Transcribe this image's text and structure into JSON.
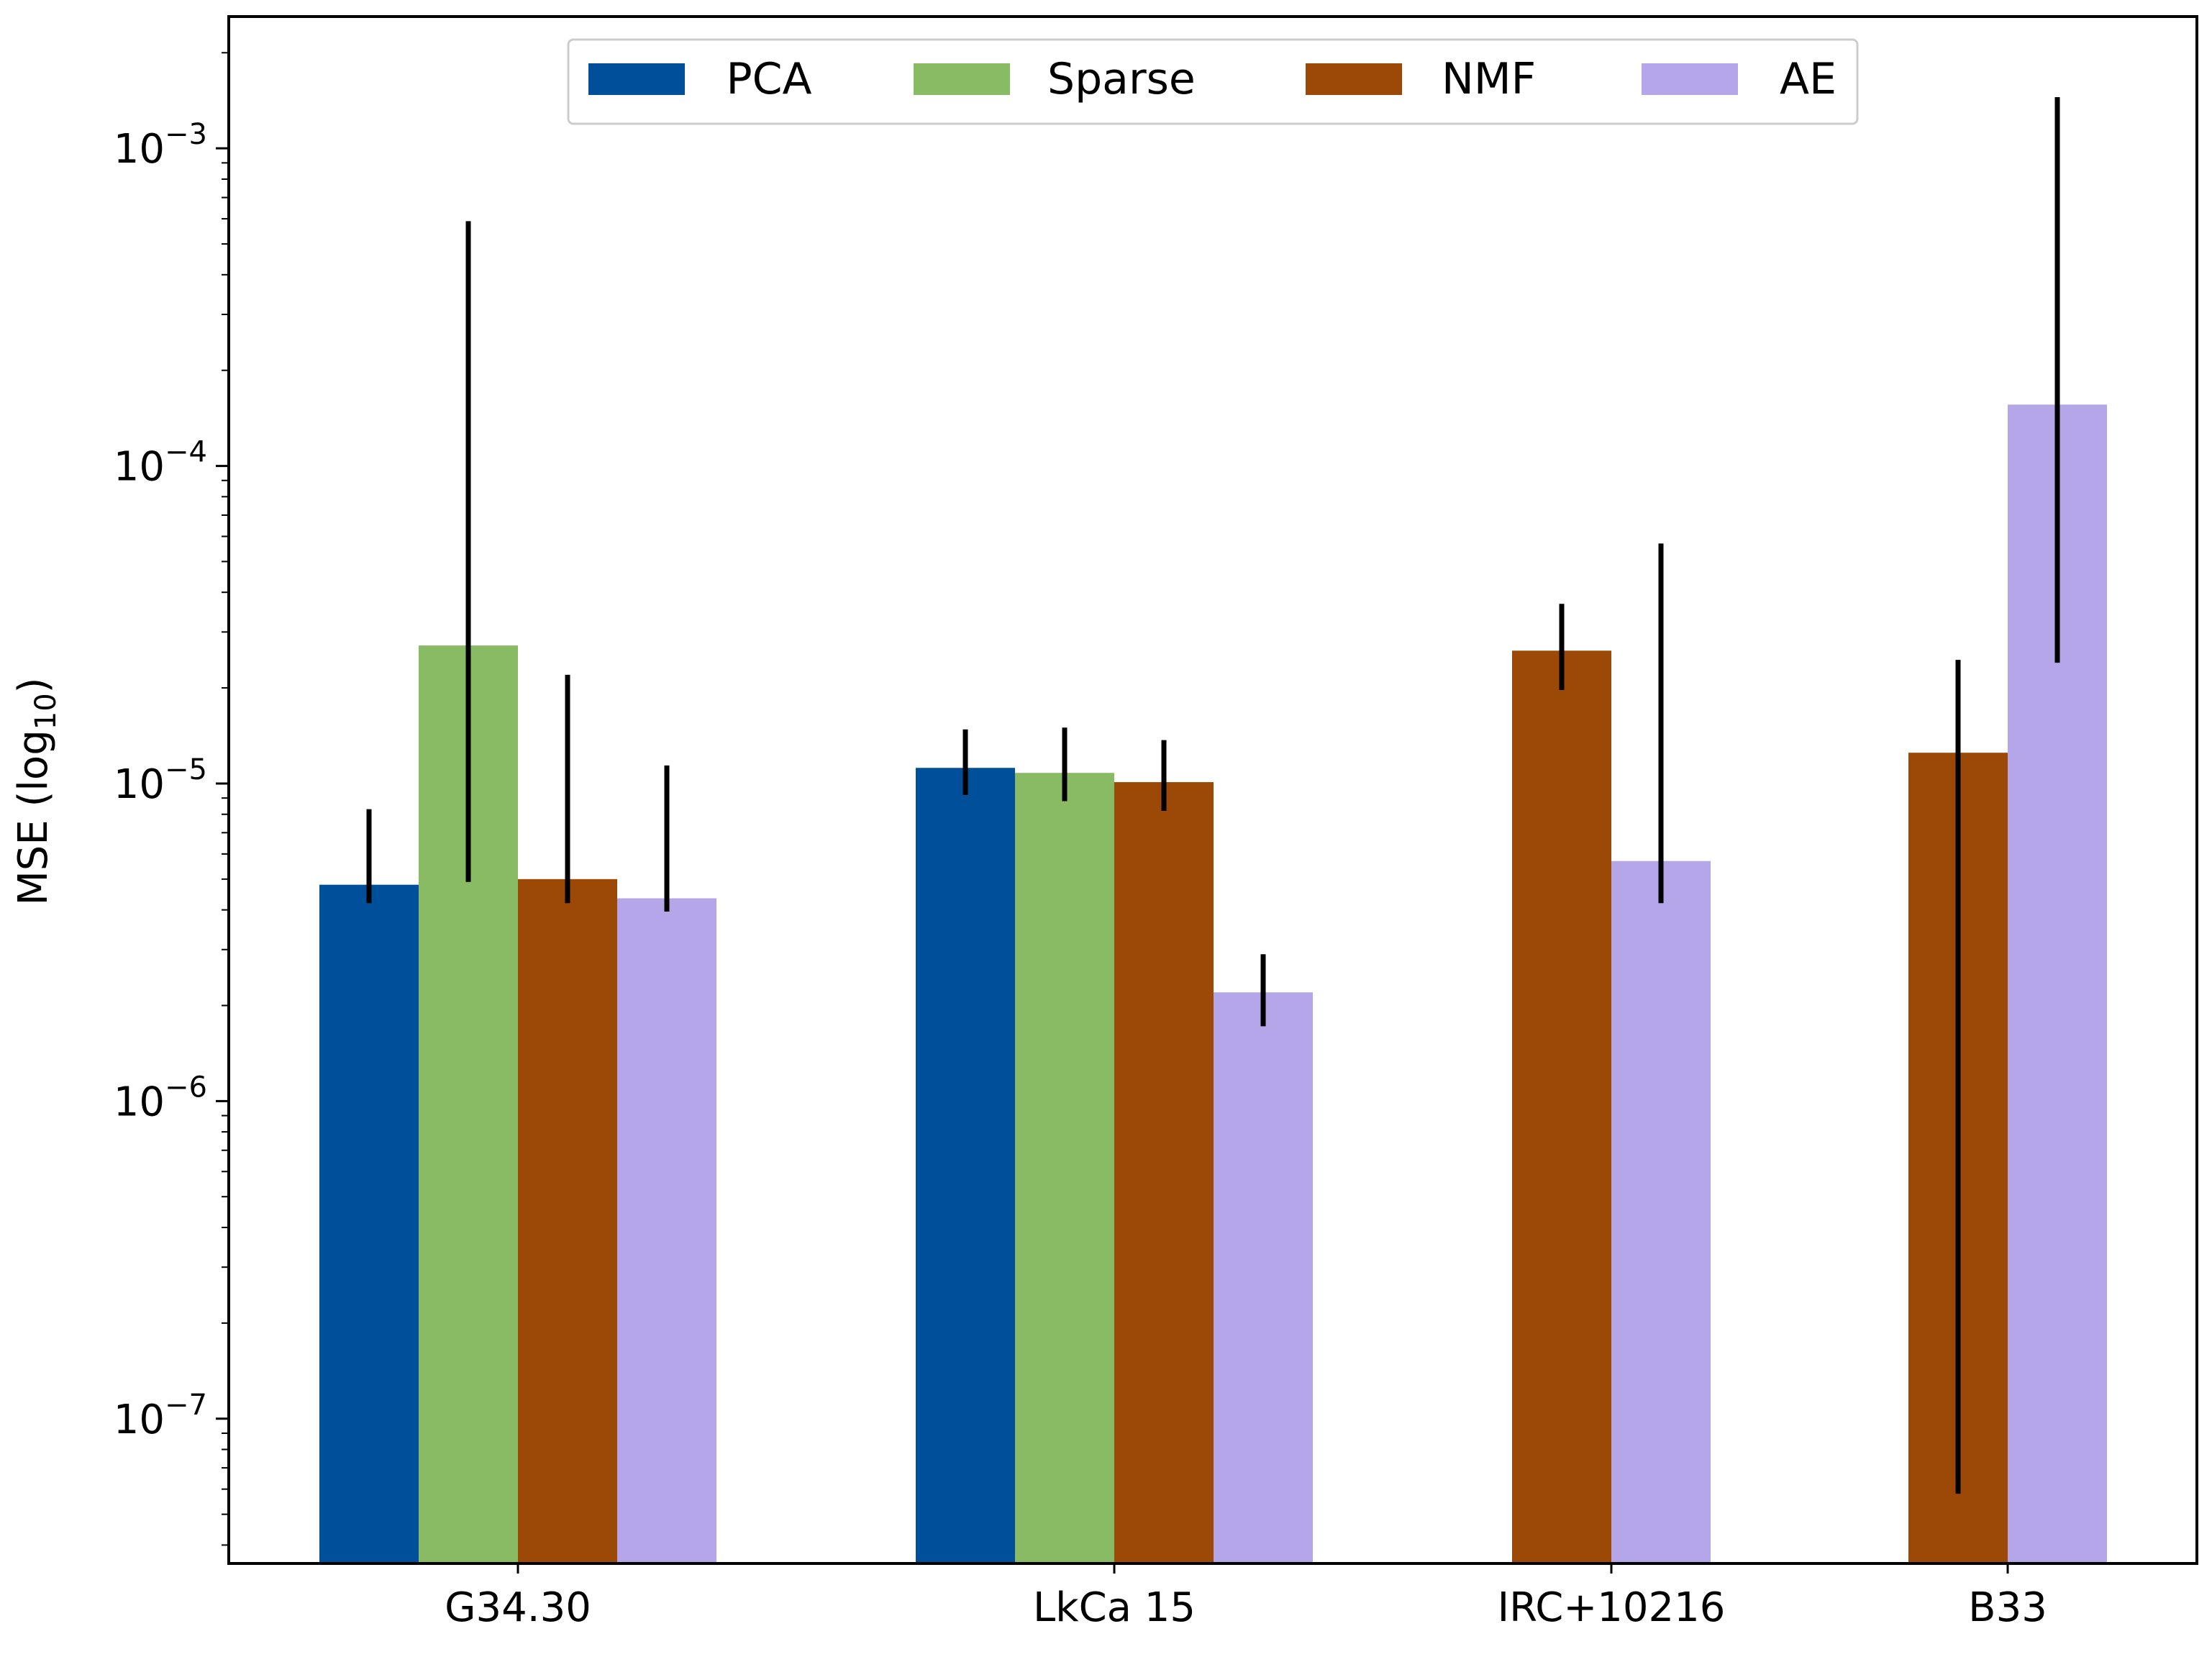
{
  "chart_data": {
    "type": "bar",
    "scale": "log",
    "title": "",
    "xlabel": "",
    "ylabel": "MSE (log",
    "ylabel_sub": "10",
    "ylabel_close": ")",
    "ylim": [
      3.5e-08,
      0.0026
    ],
    "categories": [
      "G34.30",
      "LkCa 15",
      "IRC+10216",
      "B33"
    ],
    "yticks": [
      {
        "value": 0.001,
        "base": "10",
        "exp": "−3"
      },
      {
        "value": 0.0001,
        "base": "10",
        "exp": "−4"
      },
      {
        "value": 1e-05,
        "base": "10",
        "exp": "−5"
      },
      {
        "value": 1e-06,
        "base": "10",
        "exp": "−6"
      },
      {
        "value": 1e-07,
        "base": "10",
        "exp": "−7"
      }
    ],
    "legend_position": "top-center",
    "series": [
      {
        "name": "PCA",
        "color": "#004f9b",
        "values": [
          4.8e-06,
          1.12e-05,
          null,
          null
        ],
        "err_low": [
          4.2e-06,
          9.2e-06,
          null,
          null
        ],
        "err_high": [
          8.3e-06,
          1.48e-05,
          null,
          null
        ]
      },
      {
        "name": "Sparse",
        "color": "#88bb63",
        "values": [
          2.72e-05,
          1.08e-05,
          null,
          null
        ],
        "err_low": [
          4.9e-06,
          8.8e-06,
          null,
          null
        ],
        "err_high": [
          0.00059,
          1.5e-05,
          null,
          null
        ]
      },
      {
        "name": "NMF",
        "color": "#9c4807",
        "values": [
          5e-06,
          1.01e-05,
          2.62e-05,
          1.25e-05
        ],
        "err_low": [
          4.2e-06,
          8.2e-06,
          1.97e-05,
          5.8e-08
        ],
        "err_high": [
          2.2e-05,
          1.37e-05,
          3.68e-05,
          2.45e-05
        ]
      },
      {
        "name": "AE",
        "color": "#b5a6e9",
        "values": [
          4.35e-06,
          2.2e-06,
          5.7e-06,
          0.000156
        ],
        "err_low": [
          3.95e-06,
          1.72e-06,
          4.2e-06,
          2.4e-05
        ],
        "err_high": [
          1.14e-05,
          2.9e-06,
          5.7e-05,
          0.00145
        ]
      }
    ]
  }
}
